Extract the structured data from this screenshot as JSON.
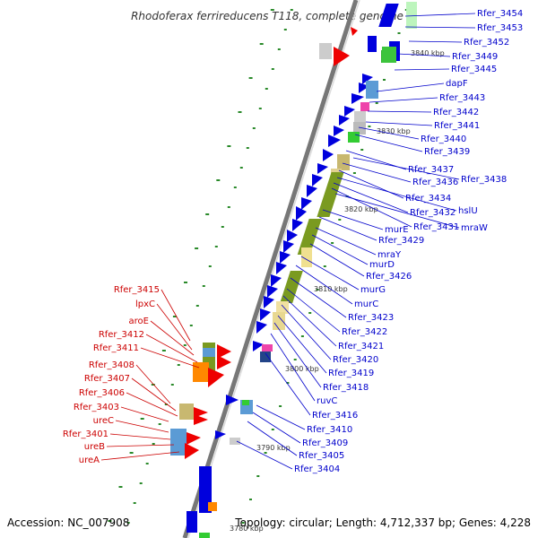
{
  "title": "Rhodoferax ferrireducens T118, complete genome",
  "accession": "Accession: NC_007908",
  "topology": "Topology: circular; Length: 4,712,337 bp; Genes: 4,228",
  "kbp_marks": [
    "3840 kbp",
    "3830 kbp",
    "3820 kbp",
    "3810 kbp",
    "3800 kbp",
    "3790 kbp",
    "3780 kbp"
  ],
  "right_labels": [
    "Rfer_3454",
    "Rfer_3453",
    "Rfer_3452",
    "Rfer_3449",
    "Rfer_3445",
    "dapF",
    "Rfer_3443",
    "Rfer_3442",
    "Rfer_3441",
    "Rfer_3440",
    "Rfer_3439",
    "Rfer_3437",
    "Rfer_3438",
    "Rfer_3436",
    "Rfer_3434",
    "hslU",
    "Rfer_3432",
    "Rfer_3431",
    "mraW",
    "murE",
    "Rfer_3429",
    "mraY",
    "murD",
    "Rfer_3426",
    "murG",
    "murC",
    "Rfer_3423",
    "Rfer_3422",
    "Rfer_3421",
    "Rfer_3420",
    "Rfer_3419",
    "Rfer_3418",
    "ruvC",
    "Rfer_3416",
    "Rfer_3410",
    "Rfer_3409",
    "Rfer_3405",
    "Rfer_3404"
  ],
  "left_labels": [
    "Rfer_3415",
    "lpxC",
    "aroE",
    "Rfer_3412",
    "Rfer_3411",
    "Rfer_3408",
    "Rfer_3407",
    "Rfer_3406",
    "Rfer_3403",
    "ureC",
    "Rfer_3401",
    "ureB",
    "ureA"
  ],
  "colors": {
    "forward_strand": "#0000dd",
    "reverse_strand": "#ee0000",
    "backbone": "#999999",
    "label_blue": "#0000cc",
    "label_red": "#cc0000",
    "olive": "#7a9a20",
    "gc_dots": "#2a8a2a"
  }
}
